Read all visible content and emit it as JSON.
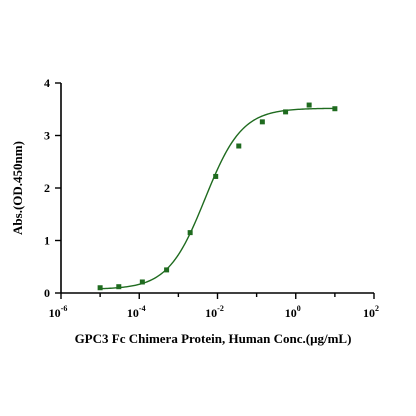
{
  "chart_data": {
    "type": "scatter",
    "xlabel": "GPC3 Fc Chimera Protein, Human Conc.(μg/mL)",
    "ylabel": "Abs.(OD.450nm)",
    "x_scale": "log",
    "xlim": [
      1e-06,
      100
    ],
    "ylim": [
      0,
      4
    ],
    "x_ticks": [
      {
        "base": "10",
        "exp": "-6",
        "value": 1e-06
      },
      {
        "base": "10",
        "exp": "-4",
        "value": 0.0001
      },
      {
        "base": "10",
        "exp": "-2",
        "value": 0.01
      },
      {
        "base": "10",
        "exp": "0",
        "value": 1
      },
      {
        "base": "10",
        "exp": "2",
        "value": 100
      }
    ],
    "y_ticks": [
      "0",
      "1",
      "2",
      "3",
      "4"
    ],
    "y_tick_values": [
      0,
      1,
      2,
      3,
      4
    ],
    "series": [
      {
        "points": [
          {
            "x": 1e-05,
            "y": 0.1
          },
          {
            "x": 3e-05,
            "y": 0.12
          },
          {
            "x": 0.00012,
            "y": 0.21
          },
          {
            "x": 0.0005,
            "y": 0.44
          },
          {
            "x": 0.002,
            "y": 1.15
          },
          {
            "x": 0.009,
            "y": 2.22
          },
          {
            "x": 0.035,
            "y": 2.8
          },
          {
            "x": 0.14,
            "y": 3.26
          },
          {
            "x": 0.55,
            "y": 3.45
          },
          {
            "x": 2.2,
            "y": 3.58
          },
          {
            "x": 10,
            "y": 3.51
          }
        ],
        "fit": {
          "bottom": 0.07,
          "top": 3.52,
          "ec50": 0.0048,
          "hill": 0.92
        }
      }
    ],
    "colors": {
      "series": "#1f6b1f",
      "axis": "#000000"
    },
    "grid": false,
    "legend": "none"
  }
}
